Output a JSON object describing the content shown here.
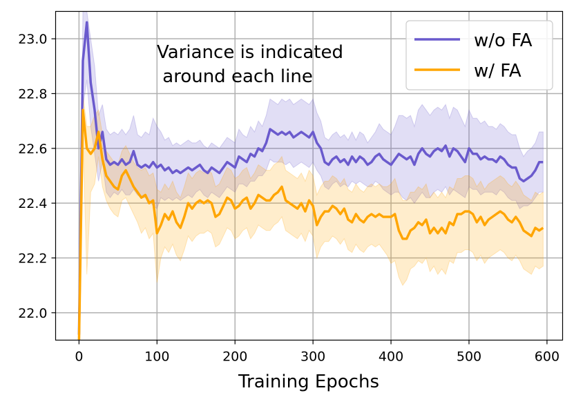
{
  "chart_data": {
    "type": "line",
    "title": "",
    "xlabel": "Training Epochs",
    "ylabel": "",
    "xlim": [
      -30,
      620
    ],
    "ylim": [
      21.9,
      23.1
    ],
    "xticks": [
      0,
      100,
      200,
      300,
      400,
      500,
      600
    ],
    "yticks": [
      22.0,
      22.2,
      22.4,
      22.6,
      22.8,
      23.0
    ],
    "xtick_labels": [
      "0",
      "100",
      "200",
      "300",
      "400",
      "500",
      "600"
    ],
    "ytick_labels": [
      "22.0",
      "22.2",
      "22.4",
      "22.6",
      "22.8",
      "23.0"
    ],
    "grid": true,
    "legend_position": "top-right",
    "annotation": [
      "Variance is indicated",
      " around each line"
    ],
    "x": [
      0,
      5,
      10,
      15,
      20,
      25,
      30,
      35,
      40,
      45,
      50,
      55,
      60,
      65,
      70,
      75,
      80,
      85,
      90,
      95,
      100,
      105,
      110,
      115,
      120,
      125,
      130,
      135,
      140,
      145,
      150,
      155,
      160,
      165,
      170,
      175,
      180,
      185,
      190,
      195,
      200,
      205,
      210,
      215,
      220,
      225,
      230,
      235,
      240,
      245,
      250,
      255,
      260,
      265,
      270,
      275,
      280,
      285,
      290,
      295,
      300,
      305,
      310,
      315,
      320,
      325,
      330,
      335,
      340,
      345,
      350,
      355,
      360,
      365,
      370,
      375,
      380,
      385,
      390,
      395,
      400,
      405,
      410,
      415,
      420,
      425,
      430,
      435,
      440,
      445,
      450,
      455,
      460,
      465,
      470,
      475,
      480,
      485,
      490,
      495,
      500,
      505,
      510,
      515,
      520,
      525,
      530,
      535,
      540,
      545,
      550,
      555,
      560,
      565,
      570,
      575,
      580,
      585,
      590,
      595
    ],
    "series": [
      {
        "name": "w/o FA",
        "color": "#6a5acd",
        "values": [
          21.92,
          22.92,
          23.06,
          22.84,
          22.74,
          22.6,
          22.66,
          22.56,
          22.54,
          22.55,
          22.54,
          22.56,
          22.54,
          22.55,
          22.59,
          22.54,
          22.53,
          22.54,
          22.53,
          22.55,
          22.53,
          22.54,
          22.52,
          22.53,
          22.51,
          22.52,
          22.51,
          22.52,
          22.53,
          22.52,
          22.53,
          22.54,
          22.52,
          22.51,
          22.53,
          22.52,
          22.51,
          22.53,
          22.55,
          22.54,
          22.53,
          22.57,
          22.56,
          22.55,
          22.58,
          22.57,
          22.6,
          22.59,
          22.62,
          22.67,
          22.66,
          22.65,
          22.66,
          22.65,
          22.66,
          22.64,
          22.65,
          22.66,
          22.65,
          22.64,
          22.66,
          22.62,
          22.6,
          22.55,
          22.54,
          22.56,
          22.57,
          22.55,
          22.56,
          22.54,
          22.57,
          22.55,
          22.57,
          22.56,
          22.54,
          22.55,
          22.57,
          22.58,
          22.56,
          22.55,
          22.54,
          22.56,
          22.58,
          22.57,
          22.56,
          22.57,
          22.54,
          22.58,
          22.6,
          22.58,
          22.57,
          22.59,
          22.6,
          22.59,
          22.61,
          22.57,
          22.6,
          22.59,
          22.57,
          22.55,
          22.6,
          22.58,
          22.58,
          22.56,
          22.57,
          22.56,
          22.56,
          22.55,
          22.57,
          22.56,
          22.54,
          22.53,
          22.53,
          22.49,
          22.48,
          22.49,
          22.5,
          22.52,
          22.55,
          22.55
        ],
        "lower": [
          21.92,
          22.75,
          22.85,
          22.68,
          22.58,
          22.48,
          22.55,
          22.44,
          22.42,
          22.44,
          22.43,
          22.45,
          22.43,
          22.43,
          22.45,
          22.43,
          22.42,
          22.42,
          22.41,
          22.39,
          22.38,
          22.42,
          22.41,
          22.42,
          22.41,
          22.42,
          22.41,
          22.42,
          22.43,
          22.42,
          22.44,
          22.45,
          22.43,
          22.42,
          22.44,
          22.43,
          22.42,
          22.44,
          22.46,
          22.45,
          22.44,
          22.47,
          22.47,
          22.46,
          22.48,
          22.48,
          22.5,
          22.5,
          22.52,
          22.56,
          22.55,
          22.55,
          22.55,
          22.54,
          22.55,
          22.53,
          22.54,
          22.55,
          22.54,
          22.53,
          22.55,
          22.52,
          22.5,
          22.46,
          22.45,
          22.47,
          22.48,
          22.46,
          22.47,
          22.46,
          22.48,
          22.47,
          22.48,
          22.47,
          22.46,
          22.46,
          22.48,
          22.47,
          22.45,
          22.44,
          22.43,
          22.44,
          22.44,
          22.42,
          22.41,
          22.42,
          22.4,
          22.42,
          22.44,
          22.42,
          22.42,
          22.44,
          22.45,
          22.44,
          22.46,
          22.43,
          22.45,
          22.44,
          22.43,
          22.42,
          22.46,
          22.45,
          22.45,
          22.43,
          22.44,
          22.44,
          22.44,
          22.43,
          22.45,
          22.44,
          22.42,
          22.41,
          22.41,
          22.38,
          22.39,
          22.39,
          22.4,
          22.42,
          22.44,
          22.44
        ],
        "upper": [
          21.92,
          23.1,
          23.1,
          23.0,
          22.9,
          22.72,
          22.76,
          22.67,
          22.65,
          22.66,
          22.65,
          22.67,
          22.65,
          22.67,
          22.72,
          22.65,
          22.64,
          22.66,
          22.65,
          22.71,
          22.68,
          22.66,
          22.63,
          22.64,
          22.61,
          22.62,
          22.61,
          22.62,
          22.63,
          22.62,
          22.62,
          22.63,
          22.61,
          22.6,
          22.62,
          22.61,
          22.6,
          22.62,
          22.64,
          22.63,
          22.62,
          22.67,
          22.65,
          22.64,
          22.68,
          22.66,
          22.7,
          22.68,
          22.72,
          22.78,
          22.77,
          22.76,
          22.78,
          22.77,
          22.78,
          22.76,
          22.77,
          22.78,
          22.77,
          22.76,
          22.78,
          22.73,
          22.7,
          22.64,
          22.63,
          22.65,
          22.66,
          22.64,
          22.65,
          22.63,
          22.66,
          22.63,
          22.66,
          22.65,
          22.62,
          22.64,
          22.66,
          22.69,
          22.67,
          22.66,
          22.65,
          22.68,
          22.72,
          22.72,
          22.71,
          22.72,
          22.68,
          22.74,
          22.76,
          22.74,
          22.72,
          22.74,
          22.75,
          22.74,
          22.76,
          22.71,
          22.75,
          22.74,
          22.71,
          22.68,
          22.74,
          22.71,
          22.71,
          22.69,
          22.7,
          22.68,
          22.68,
          22.67,
          22.69,
          22.68,
          22.66,
          22.65,
          22.65,
          22.6,
          22.57,
          22.59,
          22.6,
          22.62,
          22.66,
          22.66
        ]
      },
      {
        "name": "w/ FA",
        "color": "#ffa500",
        "values": [
          21.9,
          22.74,
          22.6,
          22.58,
          22.6,
          22.66,
          22.56,
          22.5,
          22.48,
          22.46,
          22.45,
          22.5,
          22.52,
          22.49,
          22.46,
          22.44,
          22.42,
          22.43,
          22.4,
          22.41,
          22.29,
          22.32,
          22.36,
          22.34,
          22.37,
          22.33,
          22.31,
          22.35,
          22.4,
          22.38,
          22.4,
          22.41,
          22.4,
          22.41,
          22.4,
          22.35,
          22.36,
          22.39,
          22.42,
          22.41,
          22.38,
          22.39,
          22.41,
          22.42,
          22.38,
          22.4,
          22.43,
          22.42,
          22.41,
          22.41,
          22.43,
          22.44,
          22.46,
          22.41,
          22.4,
          22.39,
          22.38,
          22.4,
          22.37,
          22.41,
          22.39,
          22.32,
          22.35,
          22.37,
          22.37,
          22.39,
          22.38,
          22.36,
          22.38,
          22.34,
          22.33,
          22.36,
          22.34,
          22.33,
          22.35,
          22.36,
          22.35,
          22.36,
          22.35,
          22.35,
          22.35,
          22.36,
          22.3,
          22.27,
          22.27,
          22.3,
          22.31,
          22.33,
          22.32,
          22.34,
          22.29,
          22.31,
          22.29,
          22.31,
          22.29,
          22.33,
          22.32,
          22.36,
          22.36,
          22.37,
          22.37,
          22.36,
          22.33,
          22.35,
          22.32,
          22.34,
          22.35,
          22.36,
          22.37,
          22.36,
          22.34,
          22.33,
          22.35,
          22.33,
          22.3,
          22.29,
          22.28,
          22.31,
          22.3,
          22.31
        ],
        "lower": [
          21.9,
          22.65,
          22.14,
          22.44,
          22.47,
          22.57,
          22.46,
          22.41,
          22.38,
          22.36,
          22.35,
          22.41,
          22.42,
          22.39,
          22.36,
          22.33,
          22.29,
          22.31,
          22.27,
          22.29,
          22.11,
          22.2,
          22.24,
          22.22,
          22.25,
          22.21,
          22.19,
          22.23,
          22.28,
          22.26,
          22.28,
          22.29,
          22.29,
          22.3,
          22.29,
          22.24,
          22.25,
          22.28,
          22.31,
          22.3,
          22.27,
          22.28,
          22.3,
          22.31,
          22.27,
          22.29,
          22.32,
          22.31,
          22.3,
          22.3,
          22.32,
          22.33,
          22.35,
          22.3,
          22.29,
          22.28,
          22.27,
          22.29,
          22.26,
          22.3,
          22.28,
          22.2,
          22.24,
          22.26,
          22.26,
          22.28,
          22.27,
          22.25,
          22.27,
          22.23,
          22.22,
          22.25,
          22.23,
          22.22,
          22.24,
          22.25,
          22.24,
          22.25,
          22.23,
          22.21,
          22.18,
          22.19,
          22.13,
          22.1,
          22.12,
          22.16,
          22.17,
          22.19,
          22.18,
          22.2,
          22.15,
          22.17,
          22.14,
          22.16,
          22.14,
          22.19,
          22.18,
          22.22,
          22.22,
          22.23,
          22.23,
          22.22,
          22.19,
          22.21,
          22.18,
          22.2,
          22.21,
          22.22,
          22.23,
          22.22,
          22.2,
          22.19,
          22.21,
          22.19,
          22.16,
          22.15,
          22.14,
          22.17,
          22.16,
          22.17
        ],
        "upper": [
          21.9,
          22.8,
          22.68,
          22.68,
          22.72,
          22.74,
          22.65,
          22.59,
          22.57,
          22.55,
          22.54,
          22.59,
          22.61,
          22.58,
          22.55,
          22.53,
          22.52,
          22.53,
          22.5,
          22.51,
          22.45,
          22.44,
          22.47,
          22.45,
          22.48,
          22.44,
          22.42,
          22.46,
          22.51,
          22.49,
          22.51,
          22.52,
          22.51,
          22.52,
          22.51,
          22.46,
          22.47,
          22.5,
          22.53,
          22.52,
          22.49,
          22.5,
          22.52,
          22.53,
          22.49,
          22.51,
          22.54,
          22.53,
          22.52,
          22.52,
          22.54,
          22.55,
          22.57,
          22.52,
          22.51,
          22.5,
          22.49,
          22.51,
          22.48,
          22.52,
          22.5,
          22.43,
          22.46,
          22.48,
          22.48,
          22.5,
          22.49,
          22.47,
          22.49,
          22.45,
          22.44,
          22.47,
          22.45,
          22.44,
          22.46,
          22.47,
          22.46,
          22.47,
          22.46,
          22.46,
          22.47,
          22.49,
          22.44,
          22.41,
          22.41,
          22.44,
          22.44,
          22.46,
          22.45,
          22.47,
          22.42,
          22.44,
          22.42,
          22.44,
          22.42,
          22.46,
          22.45,
          22.49,
          22.49,
          22.5,
          22.5,
          22.49,
          22.46,
          22.48,
          22.45,
          22.47,
          22.48,
          22.49,
          22.5,
          22.49,
          22.47,
          22.46,
          22.48,
          22.46,
          22.43,
          22.42,
          22.41,
          22.44,
          22.43,
          22.44
        ]
      }
    ]
  }
}
